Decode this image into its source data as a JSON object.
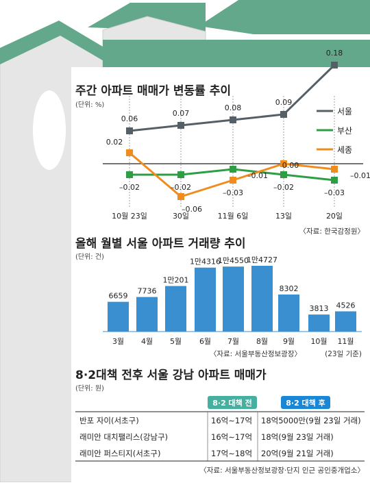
{
  "colors": {
    "roof": "#63a88a",
    "roof_dark": "#4c8f73",
    "house": "#e6e6e6",
    "house_edge": "#cccccc",
    "panel": "#ffffff",
    "seoul": "#555f66",
    "busan": "#2e9e44",
    "sejong": "#f08c1e",
    "bar": "#3a8fd0",
    "badge_before": "#45b0a0",
    "badge_after": "#1a86d6"
  },
  "chart_data": [
    {
      "type": "line",
      "title": "주간 아파트 매매가 변동률 추이",
      "unit": "(단위: %)",
      "source": "〈자료: 한국감정원〉",
      "categories": [
        "10월 23일",
        "30일",
        "11월 6일",
        "13일",
        "20일"
      ],
      "ylim": [
        -0.08,
        0.2
      ],
      "series": [
        {
          "name": "서울",
          "values": [
            0.06,
            0.07,
            0.08,
            0.09,
            0.18
          ],
          "labels": [
            "0.06",
            "0.07",
            "0.08",
            "0.09",
            "0.18"
          ]
        },
        {
          "name": "부산",
          "values": [
            -0.02,
            -0.02,
            -0.01,
            -0.02,
            -0.03
          ],
          "labels": [
            "–0.02",
            "–0.02",
            "–0.01",
            "–0.02",
            "–0.03"
          ]
        },
        {
          "name": "세종",
          "values": [
            0.02,
            -0.06,
            -0.03,
            0.0,
            -0.01
          ],
          "labels": [
            "0.02",
            "–0.06",
            "–0.03",
            "0.00",
            "–0.01"
          ]
        }
      ]
    },
    {
      "type": "bar",
      "title": "올해 월별 서울 아파트 거래량 추이",
      "unit": "(단위: 건)",
      "source": "〈자료: 서울부동산정보광장〉",
      "note": "(23일 기준)",
      "categories": [
        "3월",
        "4월",
        "5월",
        "6월",
        "7월",
        "8월",
        "9월",
        "10월",
        "11월"
      ],
      "values": [
        6659,
        7736,
        10201,
        14316,
        14550,
        14727,
        8302,
        3813,
        4526
      ],
      "labels": [
        "6659",
        "7736",
        "1만201",
        "1만4316",
        "1만4550",
        "1만4727",
        "8302",
        "3813",
        "4526"
      ],
      "ylim": [
        0,
        15000
      ]
    },
    {
      "type": "table",
      "title": "8·2대책 전후 서울 강남 아파트 매매가",
      "unit": "(단위: 원)",
      "source": "〈자료: 서울부동산정보광장·단지 인근 공인중개업소〉",
      "columns": [
        "",
        "8·2 대책 전",
        "8·2 대책 후"
      ],
      "rows": [
        [
          "반포 자이(서초구)",
          "16억∼17억",
          "18억5000만(9월 23일 거래)"
        ],
        [
          "래미안 대치팰리스(강남구)",
          "16억∼17억",
          "18억(9월 23일 거래)"
        ],
        [
          "래미안 퍼스티지(서초구)",
          "17억∼18억",
          "20억(9월 21일 거래)"
        ]
      ]
    }
  ]
}
